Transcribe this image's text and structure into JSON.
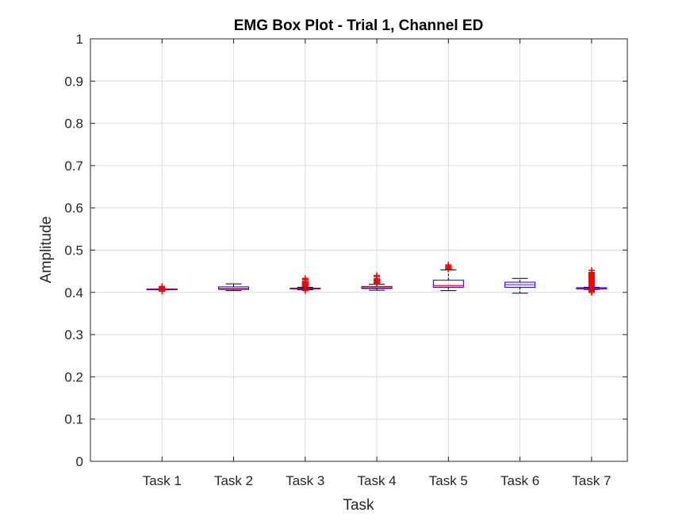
{
  "chart_data": {
    "type": "box",
    "title": "EMG Box Plot - Trial 1, Channel ED",
    "xlabel": "Task",
    "ylabel": "Amplitude",
    "ylim": [
      0,
      1
    ],
    "yticks": [
      "0",
      "0.1",
      "0.2",
      "0.3",
      "0.4",
      "0.5",
      "0.6",
      "0.7",
      "0.8",
      "0.9",
      "1"
    ],
    "categories": [
      "Task 1",
      "Task 2",
      "Task 3",
      "Task 4",
      "Task 5",
      "Task 6",
      "Task 7"
    ],
    "grid": true,
    "colors": {
      "box": "#0000ff",
      "median": "#ff0000",
      "whisker": "#000000",
      "outlier": "#ff0000",
      "grid": "#dcdcdc",
      "axis": "#262626"
    },
    "boxes": [
      {
        "category": "Task 1",
        "whisker_low": 0.406,
        "q1": 0.406,
        "median": 0.407,
        "q3": 0.408,
        "whisker_high": 0.408,
        "outliers": [
          0.403,
          0.404,
          0.405,
          0.409,
          0.41,
          0.411,
          0.412,
          0.413,
          0.414
        ]
      },
      {
        "category": "Task 2",
        "whisker_low": 0.404,
        "q1": 0.407,
        "median": 0.409,
        "q3": 0.413,
        "whisker_high": 0.42,
        "outliers": []
      },
      {
        "category": "Task 3",
        "whisker_low": 0.406,
        "q1": 0.408,
        "median": 0.409,
        "q3": 0.41,
        "whisker_high": 0.412,
        "outliers": [
          0.404,
          0.414,
          0.415,
          0.416,
          0.417,
          0.418,
          0.419,
          0.42,
          0.421,
          0.422,
          0.423,
          0.424,
          0.425,
          0.426,
          0.43,
          0.433
        ]
      },
      {
        "category": "Task 4",
        "whisker_low": 0.405,
        "q1": 0.409,
        "median": 0.411,
        "q3": 0.414,
        "whisker_high": 0.419,
        "outliers": [
          0.422,
          0.423,
          0.424,
          0.425,
          0.426,
          0.427,
          0.428,
          0.429,
          0.43,
          0.431,
          0.432,
          0.437,
          0.44
        ]
      },
      {
        "category": "Task 5",
        "whisker_low": 0.404,
        "q1": 0.412,
        "median": 0.416,
        "q3": 0.429,
        "whisker_high": 0.453,
        "outliers": [
          0.455,
          0.456,
          0.457,
          0.458,
          0.459,
          0.462,
          0.465
        ]
      },
      {
        "category": "Task 6",
        "whisker_low": 0.398,
        "q1": 0.412,
        "median": 0.418,
        "q3": 0.424,
        "whisker_high": 0.433,
        "outliers": []
      },
      {
        "category": "Task 7",
        "whisker_low": 0.407,
        "q1": 0.408,
        "median": 0.409,
        "q3": 0.411,
        "whisker_high": 0.412,
        "outliers": [
          0.4,
          0.402,
          0.404,
          0.405,
          0.413,
          0.415,
          0.417,
          0.419,
          0.421,
          0.423,
          0.425,
          0.427,
          0.429,
          0.431,
          0.433,
          0.435,
          0.437,
          0.439,
          0.441,
          0.443,
          0.445,
          0.447,
          0.452
        ]
      }
    ]
  }
}
